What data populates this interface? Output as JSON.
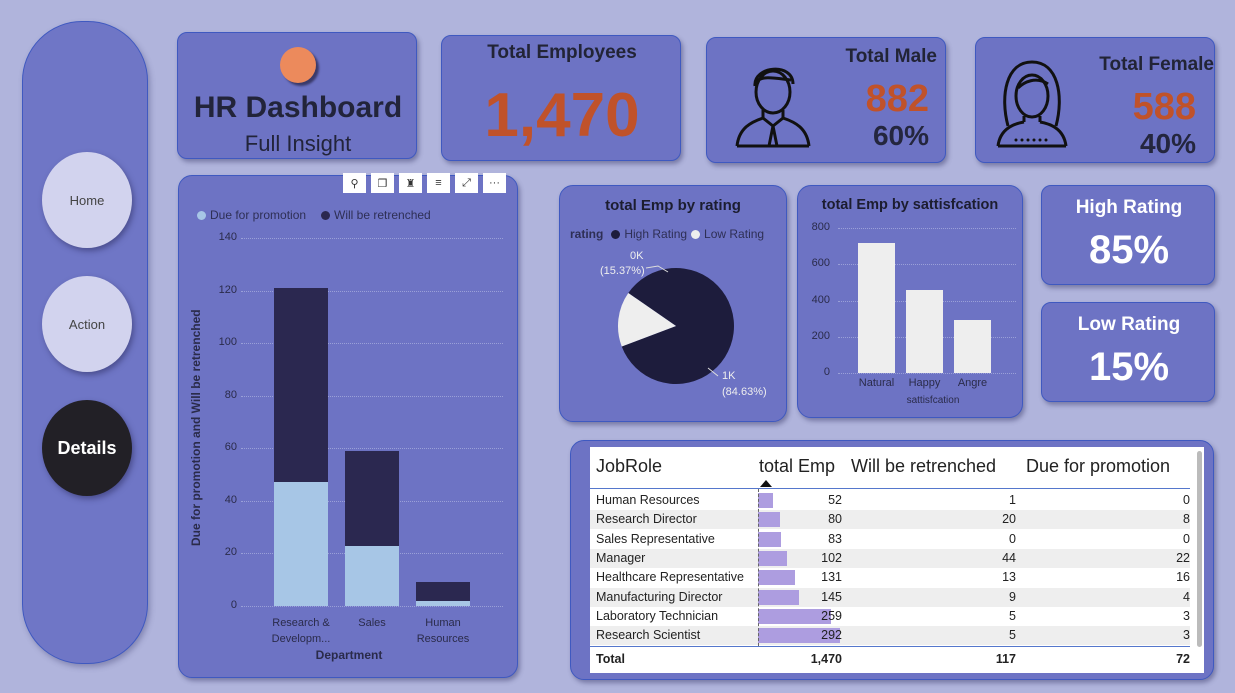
{
  "nav": {
    "home": "Home",
    "action": "Action",
    "details": "Details"
  },
  "title_card": {
    "title": "HR Dashboard",
    "subtitle": "Full Insight"
  },
  "total_employees": {
    "label": "Total Employees",
    "value": "1,470"
  },
  "total_male": {
    "label": "Total Male",
    "value": "882",
    "percent": "60%"
  },
  "total_female": {
    "label": "Total Female",
    "value": "588",
    "percent": "40%"
  },
  "high_rating": {
    "label": "High Rating",
    "value": "85%"
  },
  "low_rating": {
    "label": "Low Rating",
    "value": "15%"
  },
  "colors": {
    "accent_orange": "#c0522a",
    "card_bg": "#6d73c4",
    "dark_series": "#2b2850",
    "light_series": "#a7c6e6",
    "page_bg": "#b0b4dc"
  },
  "chart_data": [
    {
      "type": "bar",
      "stacked": true,
      "title": "",
      "legend": [
        "Due for promotion",
        "Will be retrenched"
      ],
      "categories": [
        "Research & Developm...",
        "Sales",
        "Human Resources"
      ],
      "category_lines": [
        [
          "Research &",
          "Developm..."
        ],
        [
          "Sales"
        ],
        [
          "Human",
          "Resources"
        ]
      ],
      "series": [
        {
          "name": "Due for promotion",
          "values": [
            47,
            23,
            2
          ]
        },
        {
          "name": "Will be retrenched",
          "values": [
            74,
            36,
            7
          ]
        }
      ],
      "xlabel": "Department",
      "ylabel": "Due for promotion and Will be retrenched",
      "ylim": [
        0,
        140
      ],
      "yticks": [
        "0",
        "20",
        "40",
        "60",
        "80",
        "100",
        "120",
        "140"
      ]
    },
    {
      "type": "pie",
      "title": "total Emp by rating",
      "legend_title": "rating",
      "legend": [
        "High Rating",
        "Low Rating"
      ],
      "slices": [
        {
          "name": "High Rating",
          "value": 84.63,
          "label": "1K",
          "pct": "(84.63%)"
        },
        {
          "name": "Low Rating",
          "value": 15.37,
          "label": "0K",
          "pct": "(15.37%)"
        }
      ]
    },
    {
      "type": "bar",
      "title": "total Emp by sattisfcation",
      "categories": [
        "Natural",
        "Happy",
        "Angre"
      ],
      "values": [
        720,
        460,
        290
      ],
      "xlabel": "sattisfcation",
      "ylim": [
        0,
        800
      ],
      "yticks": [
        "0",
        "200",
        "400",
        "600",
        "800"
      ]
    }
  ],
  "table": {
    "headers": {
      "jobrole": "JobRole",
      "total": "total Emp",
      "retrenched": "Will be retrenched",
      "promotion": "Due for promotion"
    },
    "rows": [
      {
        "role": "Human Resources",
        "total": "52",
        "retr": "1",
        "promo": "0",
        "n": 52
      },
      {
        "role": "Research Director",
        "total": "80",
        "retr": "20",
        "promo": "8",
        "n": 80
      },
      {
        "role": "Sales Representative",
        "total": "83",
        "retr": "0",
        "promo": "0",
        "n": 83
      },
      {
        "role": "Manager",
        "total": "102",
        "retr": "44",
        "promo": "22",
        "n": 102
      },
      {
        "role": "Healthcare Representative",
        "total": "131",
        "retr": "13",
        "promo": "16",
        "n": 131
      },
      {
        "role": "Manufacturing Director",
        "total": "145",
        "retr": "9",
        "promo": "4",
        "n": 145
      },
      {
        "role": "Laboratory Technician",
        "total": "259",
        "retr": "5",
        "promo": "3",
        "n": 259
      },
      {
        "role": "Research Scientist",
        "total": "292",
        "retr": "5",
        "promo": "3",
        "n": 292
      }
    ],
    "total": {
      "label": "Total",
      "total": "1,470",
      "retr": "117",
      "promo": "72"
    }
  }
}
